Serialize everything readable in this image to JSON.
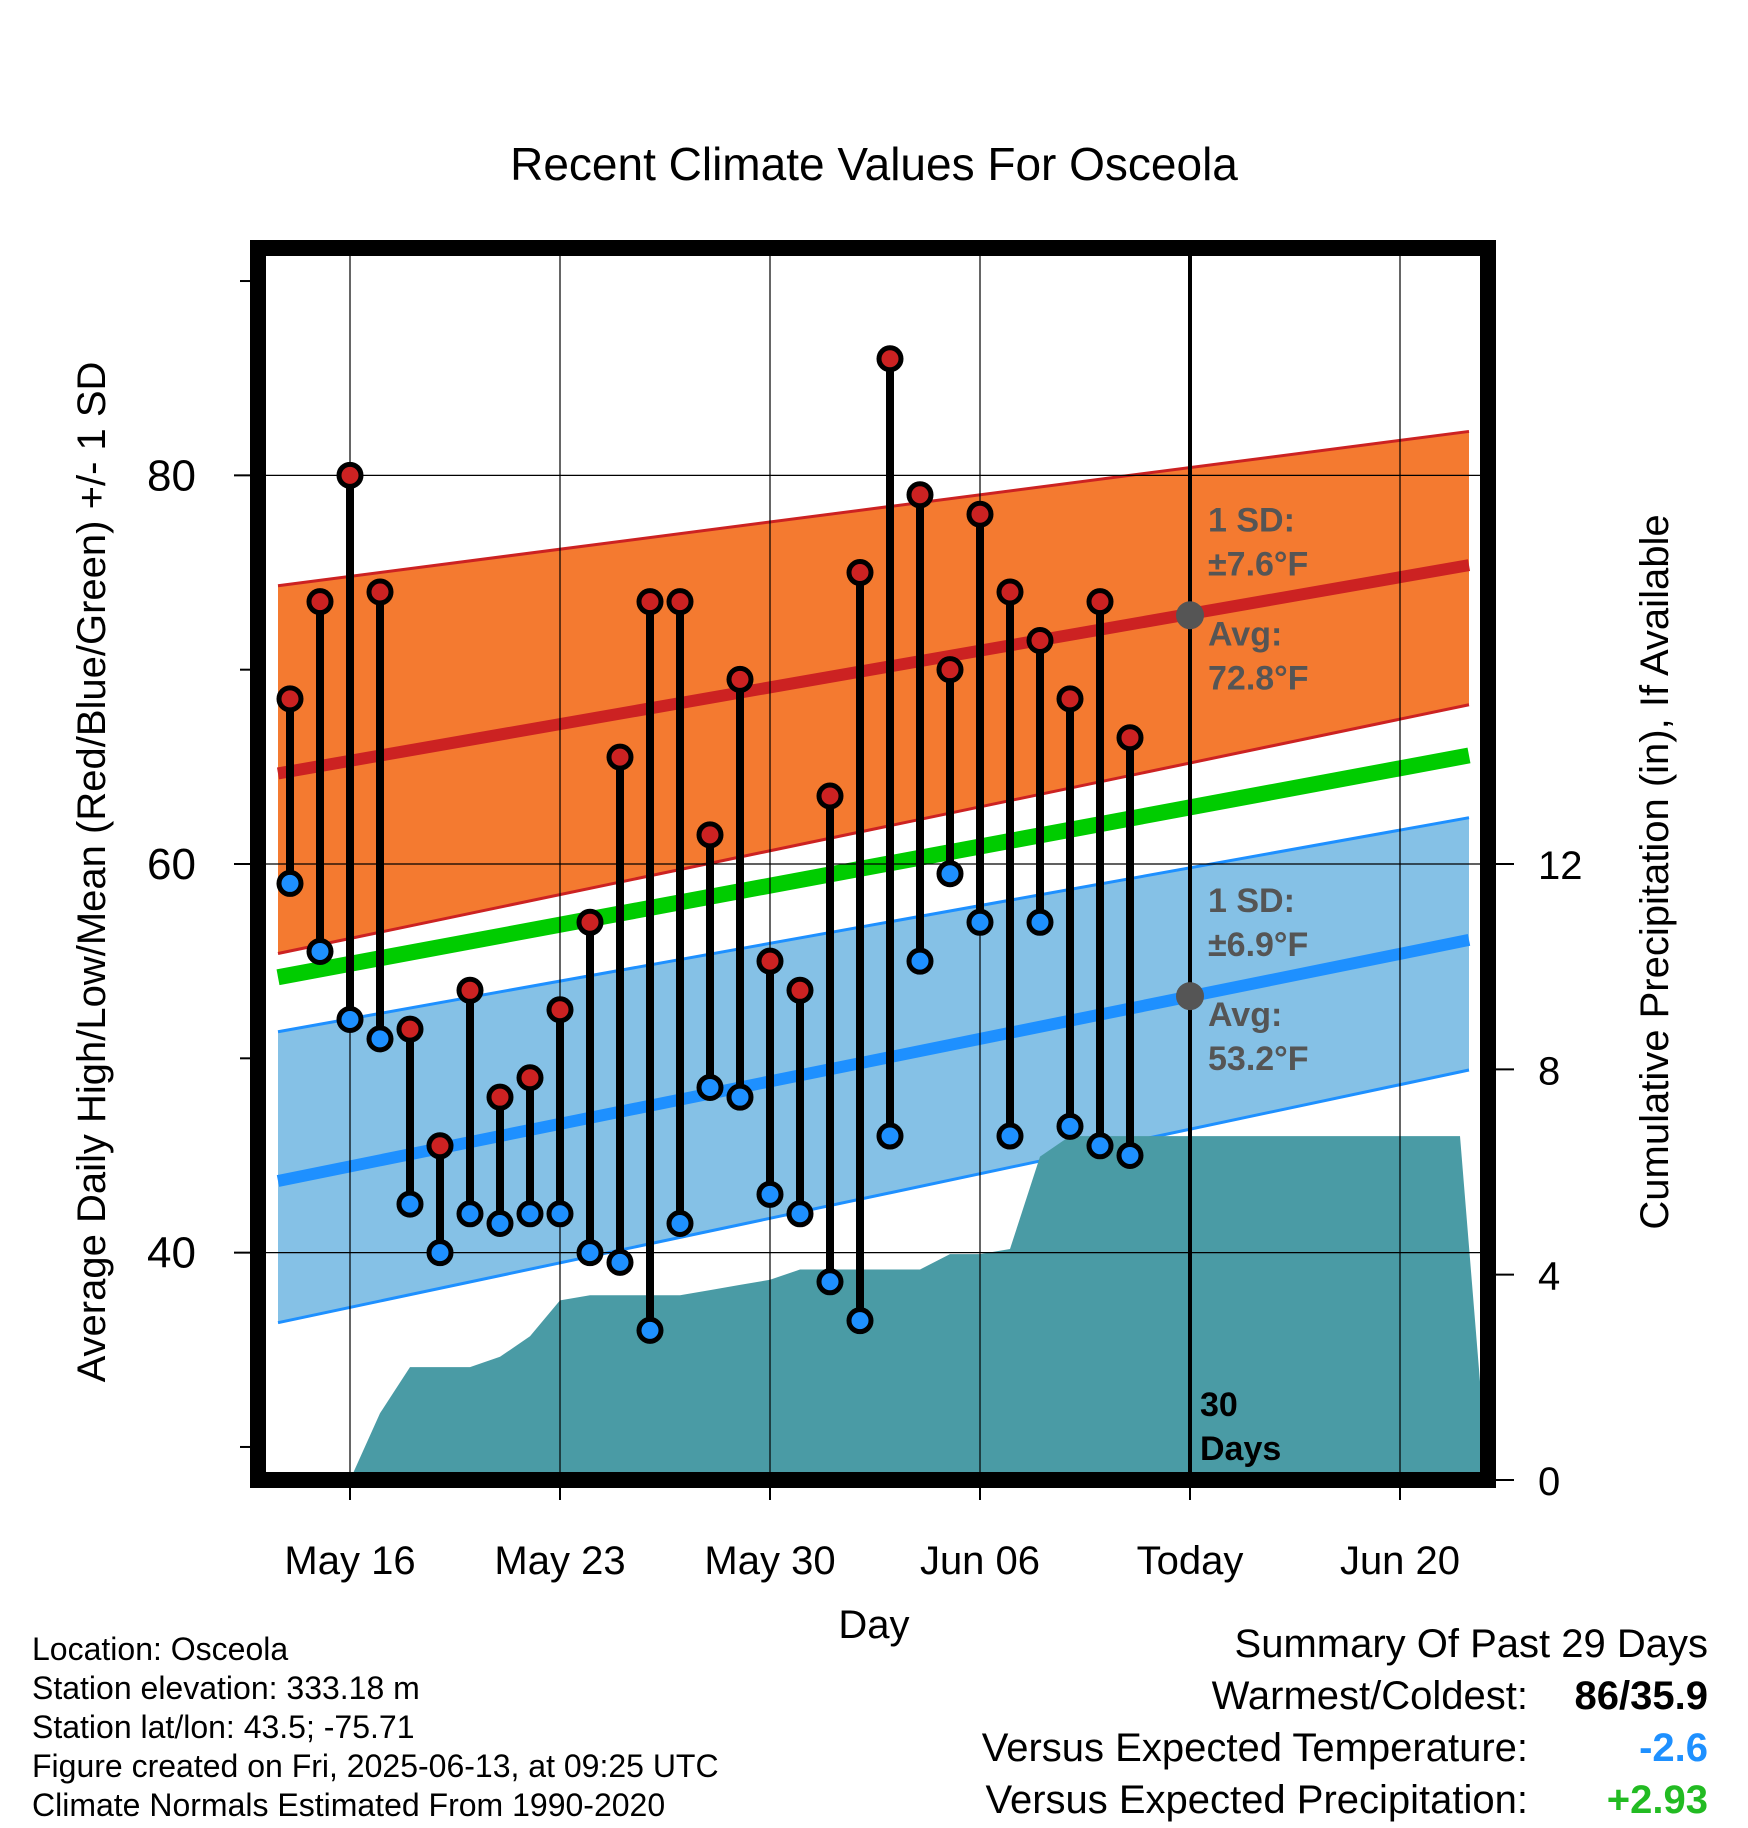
{
  "chart_data": {
    "type": "line",
    "title": "Recent Climate Values For Osceola",
    "xlabel": "Day",
    "ylabel_left": "Average Daily High/Low/Mean (Red/Blue/Green) +/- 1 SD",
    "ylabel_right": "Cumulative Precipitation (in), If Available",
    "x_start_date": "2025-05-13",
    "x_tick_labels": [
      "May 16",
      "May 23",
      "May 30",
      "Jun 06",
      "Today",
      "Jun 20"
    ],
    "x_tick_days": [
      3,
      10,
      17,
      24,
      31,
      38
    ],
    "y_left_ticks": [
      40,
      60,
      80
    ],
    "y_left_range": [
      28.3,
      91.7
    ],
    "y_right_ticks": [
      0,
      4,
      8,
      12
    ],
    "y_right_range": [
      0,
      24
    ],
    "today_day": 31,
    "today_label_1": "30",
    "today_label_2": "Days",
    "days": [
      1,
      2,
      3,
      4,
      5,
      6,
      7,
      8,
      9,
      10,
      11,
      12,
      13,
      14,
      15,
      16,
      17,
      18,
      19,
      20,
      21,
      22,
      23,
      24,
      25,
      26,
      27,
      28,
      29,
      30
    ],
    "highs": [
      68.5,
      73.5,
      80,
      74,
      51.5,
      45.5,
      53.5,
      48,
      49,
      52.5,
      57,
      65.5,
      73.5,
      73.5,
      61.5,
      69.5,
      55,
      53.5,
      63.5,
      75,
      86,
      79,
      70,
      78,
      74,
      71.5,
      68.5,
      73.5,
      66.5
    ],
    "lows": [
      59,
      55.5,
      52,
      51,
      42.5,
      40,
      42,
      41.5,
      42,
      42,
      40,
      39.5,
      36,
      41.5,
      48.5,
      48,
      43,
      42,
      38.5,
      36.5,
      46,
      55,
      59.5,
      57,
      46,
      57,
      46.5,
      45.5,
      45
    ],
    "normal_high": {
      "days": [
        0,
        40
      ],
      "avg": [
        64.5,
        75.3
      ],
      "upper": [
        74.2,
        82.2
      ],
      "lower": [
        55.2,
        68.1
      ]
    },
    "normal_low": {
      "days": [
        0,
        40
      ],
      "avg": [
        43.5,
        56
      ],
      "upper": [
        51.2,
        62.3
      ],
      "lower": [
        36.2,
        49.3
      ]
    },
    "normal_mean": {
      "days": [
        0,
        40
      ],
      "avg": [
        54,
        65.5
      ]
    },
    "precip_cumulative": {
      "days": [
        3,
        4,
        5,
        6,
        7,
        8,
        9,
        10,
        11,
        12,
        13,
        14,
        15,
        16,
        17,
        18,
        19,
        20,
        21,
        22,
        23,
        24,
        25,
        26,
        27,
        28,
        29,
        40
      ],
      "values": [
        0,
        1.3,
        2.2,
        2.2,
        2.2,
        2.4,
        2.8,
        3.5,
        3.6,
        3.6,
        3.6,
        3.6,
        3.7,
        3.8,
        3.9,
        4.1,
        4.1,
        4.1,
        4.1,
        4.1,
        4.4,
        4.4,
        4.5,
        6.3,
        6.7,
        6.7,
        6.7,
        6.7
      ]
    },
    "annotations": {
      "high_sd_label": "1 SD:",
      "high_sd_value": "±7.6°F",
      "high_avg_label": "Avg:",
      "high_avg_value": "72.8°F",
      "low_sd_label": "1 SD:",
      "low_sd_value": "±6.9°F",
      "low_avg_label": "Avg:",
      "low_avg_value": "53.2°F",
      "today_high_avg": 72.8,
      "today_low_avg": 53.2
    },
    "colors": {
      "high_band": "#F47A30",
      "high_line": "#CC2222",
      "low_band": "#85C1E6",
      "low_line": "#1E90FF",
      "mean_line": "#00CC00",
      "precip": "#4A9BA5",
      "high_dot": "#CC2222",
      "low_dot": "#1E90FF",
      "annotation": "#555555"
    }
  },
  "footer": {
    "location": "Location: Osceola",
    "elevation": "Station elevation: 333.18 m",
    "latlon": "Station lat/lon: 43.5; -75.71",
    "created": "Figure created on Fri, 2025-06-13, at 09:25 UTC",
    "normals": "Climate Normals Estimated From 1990-2020"
  },
  "summary": {
    "title": "Summary Of Past 29 Days",
    "warm_cold_label": "Warmest/Coldest:",
    "warm_cold_value": "86/35.9",
    "temp_label": "Versus Expected Temperature:",
    "temp_value": "-2.6",
    "precip_label": "Versus Expected Precipitation:",
    "precip_value": "+2.93"
  }
}
